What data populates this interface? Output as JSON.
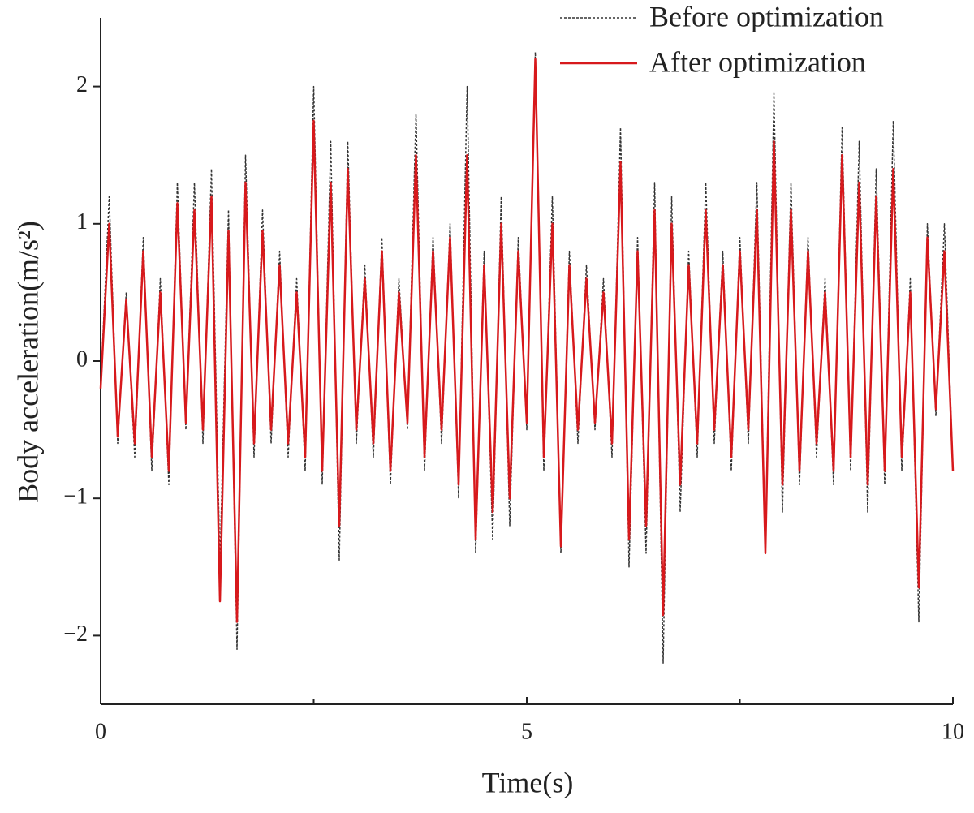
{
  "chart_data": {
    "type": "line",
    "xlabel": "Time(s)",
    "ylabel": "Body acceleration(m/s²)",
    "x": [
      0,
      0.1,
      0.2,
      0.3,
      0.4,
      0.5,
      0.6,
      0.7,
      0.8,
      0.9,
      1,
      1.1,
      1.2,
      1.3,
      1.4,
      1.5,
      1.6,
      1.7,
      1.8,
      1.9,
      2,
      2.1,
      2.2,
      2.3,
      2.4,
      2.5,
      2.6,
      2.7,
      2.8,
      2.9,
      3,
      3.1,
      3.2,
      3.3,
      3.4,
      3.5,
      3.6,
      3.7,
      3.8,
      3.9,
      4,
      4.1,
      4.2,
      4.3,
      4.4,
      4.5,
      4.6,
      4.7,
      4.8,
      4.9,
      5,
      5.1,
      5.2,
      5.3,
      5.4,
      5.5,
      5.6,
      5.7,
      5.8,
      5.9,
      6,
      6.1,
      6.2,
      6.3,
      6.4,
      6.5,
      6.6,
      6.7,
      6.8,
      6.9,
      7,
      7.1,
      7.2,
      7.3,
      7.4,
      7.5,
      7.6,
      7.7,
      7.8,
      7.9,
      8,
      8.1,
      8.2,
      8.3,
      8.4,
      8.5,
      8.6,
      8.7,
      8.8,
      8.9,
      9,
      9.1,
      9.2,
      9.3,
      9.4,
      9.5,
      9.6,
      9.7,
      9.8,
      9.9,
      10
    ],
    "series": [
      {
        "name": "Before optimization",
        "color": "#333333",
        "line_style": "dashed",
        "values": [
          -0.2,
          1.2,
          -0.6,
          0.5,
          -0.7,
          0.9,
          -0.8,
          0.6,
          -0.9,
          1.3,
          -0.5,
          1.3,
          -0.6,
          1.4,
          -1.5,
          1.1,
          -2.1,
          1.5,
          -0.7,
          1.1,
          -0.6,
          0.8,
          -0.7,
          0.6,
          -0.8,
          2.0,
          -0.9,
          1.6,
          -1.45,
          1.6,
          -0.6,
          0.7,
          -0.7,
          0.9,
          -0.9,
          0.6,
          -0.5,
          1.8,
          -0.8,
          0.9,
          -0.6,
          1.0,
          -1.0,
          2.0,
          -1.4,
          0.8,
          -1.3,
          1.2,
          -1.2,
          0.9,
          -0.5,
          2.25,
          -0.8,
          1.2,
          -1.4,
          0.8,
          -0.6,
          0.7,
          -0.5,
          0.6,
          -0.7,
          1.7,
          -1.5,
          0.9,
          -1.4,
          1.3,
          -2.2,
          1.2,
          -1.1,
          0.8,
          -0.7,
          1.3,
          -0.6,
          0.8,
          -0.8,
          0.9,
          -0.6,
          1.3,
          -1.4,
          1.95,
          -1.1,
          1.3,
          -0.9,
          0.9,
          -0.7,
          0.6,
          -0.9,
          1.7,
          -0.8,
          1.6,
          -1.1,
          1.4,
          -0.9,
          1.75,
          -0.8,
          0.6,
          -1.9,
          1.0,
          -0.4,
          1.0,
          -0.8
        ]
      },
      {
        "name": "After optimization",
        "color": "#d7191c",
        "line_style": "solid",
        "values": [
          -0.2,
          1.0,
          -0.55,
          0.45,
          -0.6,
          0.8,
          -0.7,
          0.5,
          -0.8,
          1.15,
          -0.45,
          1.1,
          -0.5,
          1.2,
          -1.75,
          0.95,
          -1.9,
          1.3,
          -0.6,
          0.95,
          -0.5,
          0.7,
          -0.6,
          0.5,
          -0.7,
          1.75,
          -0.8,
          1.3,
          -1.2,
          1.4,
          -0.5,
          0.6,
          -0.6,
          0.8,
          -0.8,
          0.5,
          -0.45,
          1.5,
          -0.7,
          0.8,
          -0.5,
          0.9,
          -0.9,
          1.5,
          -1.3,
          0.7,
          -1.1,
          1.0,
          -1.0,
          0.8,
          -0.45,
          2.2,
          -0.7,
          1.0,
          -1.35,
          0.7,
          -0.5,
          0.6,
          -0.45,
          0.5,
          -0.6,
          1.45,
          -1.3,
          0.8,
          -1.2,
          1.1,
          -1.85,
          1.0,
          -0.9,
          0.7,
          -0.6,
          1.1,
          -0.5,
          0.7,
          -0.7,
          0.8,
          -0.5,
          1.1,
          -1.4,
          1.6,
          -0.9,
          1.1,
          -0.8,
          0.8,
          -0.6,
          0.5,
          -0.8,
          1.5,
          -0.7,
          1.3,
          -0.9,
          1.2,
          -0.8,
          1.4,
          -0.7,
          0.5,
          -1.65,
          0.9,
          -0.35,
          0.8,
          -0.8
        ]
      }
    ],
    "xlim": [
      0,
      10
    ],
    "xticks": [
      0,
      5,
      10
    ],
    "xminor_ticks": [
      2.5,
      7.5
    ],
    "ylim": [
      -2.5,
      2.5
    ],
    "yticks": [
      {
        "value": -2,
        "label": "−2"
      },
      {
        "value": -1,
        "label": "−1"
      },
      0,
      1,
      2
    ],
    "legend": "upper right",
    "grid": false
  }
}
